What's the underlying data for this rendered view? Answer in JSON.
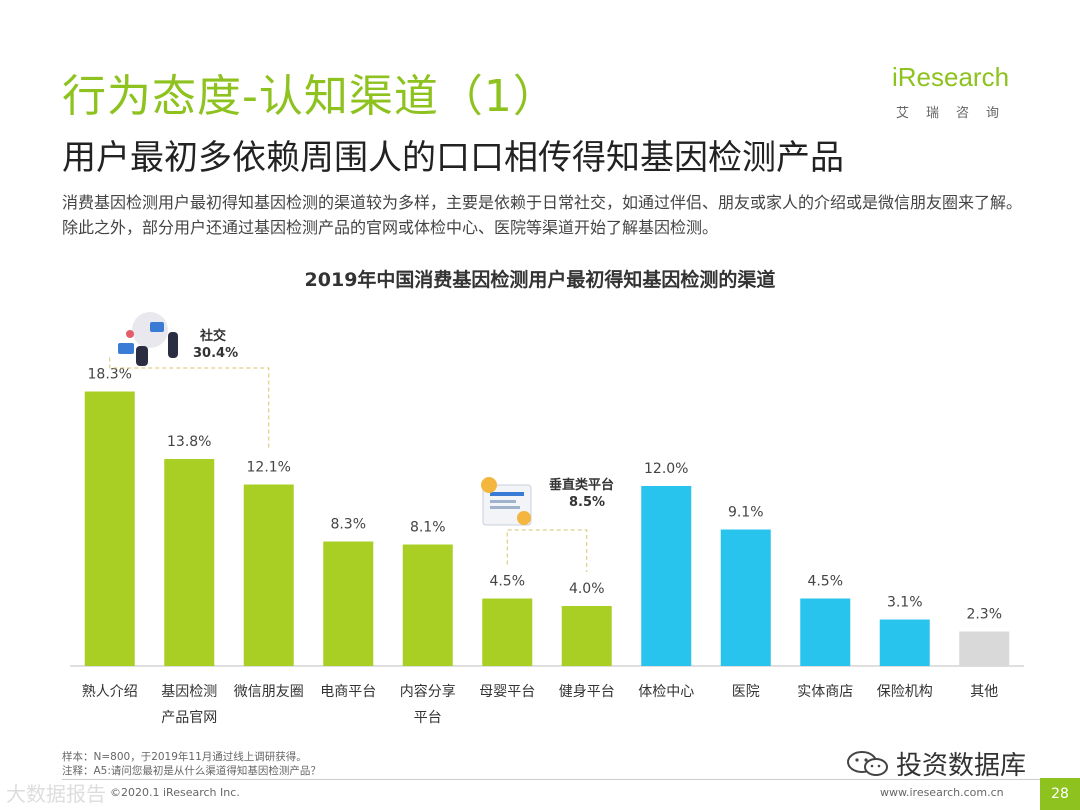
{
  "header": {
    "title": "行为态度-认知渠道（1）",
    "subtitle": "用户最初多依赖周围人的口口相传得知基因检测产品",
    "description": "消费基因检测用户最初得知基因检测的渠道较为多样，主要是依赖于日常社交，如通过伴侣、朋友或家人的介绍或是微信朋友圈来了解。除此之外，部分用户还通过基因检测产品的官网或体检中心、医院等渠道开始了解基因检测。"
  },
  "logo": {
    "word": "iResearch",
    "sub": "艾瑞咨询"
  },
  "colors": {
    "green": "#a9cf25",
    "blue": "#29c4ee",
    "gray": "#d9d9d9",
    "brand": "#8dc21f"
  },
  "chart_data": {
    "type": "bar",
    "title": "2019年中国消费基因检测用户最初得知基因检测的渠道",
    "unit": "%",
    "categories": [
      [
        "熟人介绍"
      ],
      [
        "基因检测",
        "产品官网"
      ],
      [
        "微信朋友圈"
      ],
      [
        "电商平台"
      ],
      [
        "内容分享",
        "平台"
      ],
      [
        "母婴平台"
      ],
      [
        "健身平台"
      ],
      [
        "体检中心"
      ],
      [
        "医院"
      ],
      [
        "实体商店"
      ],
      [
        "保险机构"
      ],
      [
        "其他"
      ]
    ],
    "values": [
      18.3,
      13.8,
      12.1,
      8.3,
      8.1,
      4.5,
      4.0,
      12.0,
      9.1,
      4.5,
      3.1,
      2.3
    ],
    "value_labels": [
      "18.3%",
      "13.8%",
      "12.1%",
      "8.3%",
      "8.1%",
      "4.5%",
      "4.0%",
      "12.0%",
      "9.1%",
      "4.5%",
      "3.1%",
      "2.3%"
    ],
    "color_groups": [
      "green",
      "green",
      "green",
      "green",
      "green",
      "green",
      "green",
      "blue",
      "blue",
      "blue",
      "blue",
      "gray"
    ],
    "ylim": [
      0,
      20
    ],
    "annotations": [
      {
        "label": "社交",
        "value": "30.4%",
        "bars": [
          0,
          2
        ]
      },
      {
        "label": "垂直类平台",
        "value": "8.5%",
        "bars": [
          5,
          6
        ]
      }
    ]
  },
  "notes": {
    "sample": "样本：N=800，于2019年11月通过线上调研获得。",
    "note": "注释：A5:请问您最初是从什么渠道得知基因检测产品？"
  },
  "footer": {
    "copyright": "©2020.1 iResearch Inc.",
    "website": "www.iresearch.com.cn",
    "page": "28",
    "watermark": "投资数据库",
    "watermark_left": "大数据报告"
  }
}
